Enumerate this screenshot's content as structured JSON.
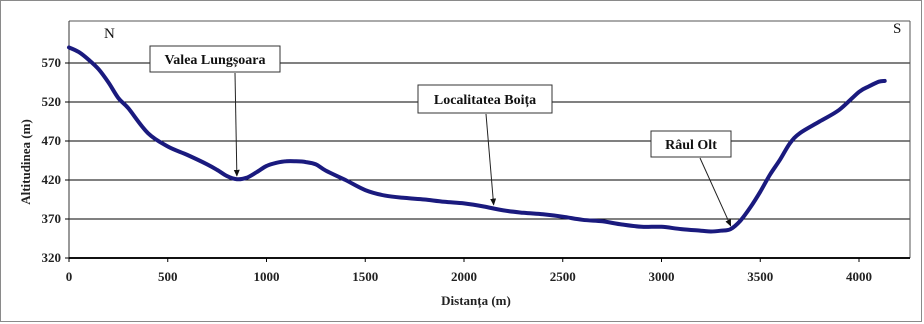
{
  "chart_data": {
    "type": "line",
    "xlabel": "Distanța (m)",
    "ylabel": "Altitudinea (m)",
    "xlim": [
      0,
      4300
    ],
    "ylim": [
      320,
      600
    ],
    "xticks": [
      0,
      500,
      1000,
      1500,
      2000,
      2500,
      3000,
      3500,
      4000
    ],
    "yticks": [
      320,
      370,
      420,
      470,
      520,
      570
    ],
    "grid": "horizontal",
    "legend": "none",
    "series_color": "#1a1a7e",
    "x": [
      0,
      50,
      100,
      150,
      200,
      250,
      300,
      400,
      500,
      600,
      700,
      750,
      800,
      850,
      900,
      950,
      1000,
      1050,
      1100,
      1150,
      1200,
      1250,
      1300,
      1400,
      1500,
      1600,
      1700,
      1800,
      1900,
      2000,
      2100,
      2200,
      2300,
      2400,
      2500,
      2600,
      2700,
      2800,
      2900,
      3000,
      3100,
      3200,
      3250,
      3300,
      3350,
      3400,
      3450,
      3500,
      3550,
      3600,
      3650,
      3700,
      3800,
      3900,
      4000,
      4050,
      4100,
      4130
    ],
    "values": [
      590,
      584,
      574,
      562,
      545,
      525,
      512,
      480,
      463,
      452,
      440,
      433,
      425,
      421,
      423,
      430,
      438,
      442,
      444,
      444,
      443,
      440,
      432,
      420,
      407,
      400,
      397,
      395,
      392,
      390,
      386,
      381,
      378,
      376,
      373,
      369,
      367,
      363,
      360,
      360,
      357,
      355,
      354,
      355,
      357,
      368,
      385,
      405,
      427,
      446,
      467,
      480,
      495,
      510,
      533,
      540,
      546,
      547
    ],
    "annotations": [
      {
        "text": "Valea Lungșoara",
        "x": 850,
        "y": 419
      },
      {
        "text": "Localitatea Boița",
        "x": 2150,
        "y": 382
      },
      {
        "text": "Râul Olt",
        "x": 3350,
        "y": 355
      }
    ],
    "corner_labels": {
      "left": "N",
      "right": "S"
    }
  }
}
